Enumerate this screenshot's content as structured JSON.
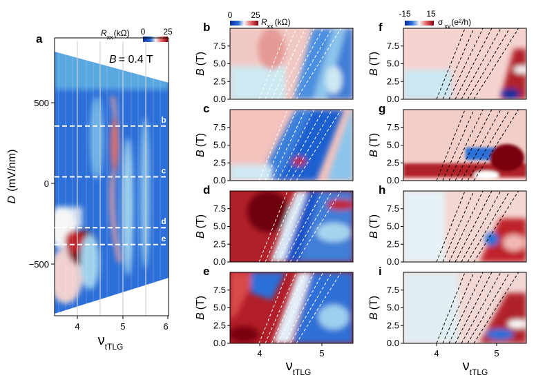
{
  "chart_data": [
    {
      "panel": "a",
      "type": "heatmap",
      "xlabel": "ν",
      "xlabel_sub": "tTLG",
      "ylabel_sym": "D",
      "ylabel_unit": "(mV/nm)",
      "xlim": [
        3.5,
        6.0
      ],
      "ylim": [
        -820,
        820
      ],
      "xticks": [
        "4",
        "5",
        "6"
      ],
      "yticks": [
        "500",
        "0",
        "−500"
      ],
      "annotation": "= 0.4 T",
      "annotation_sym": "B",
      "colorbar": {
        "label_sym": "R",
        "label_sub": "xx",
        "label_unit": "(kΩ)",
        "min": "0",
        "max": "25"
      },
      "cuts": [
        {
          "label": "b",
          "D": 300
        },
        {
          "label": "c",
          "D": 0
        },
        {
          "label": "d",
          "D": -300
        },
        {
          "label": "e",
          "D": -400
        }
      ]
    },
    {
      "panel": "b",
      "quantity": "Rxx",
      "ylabel": "B (T)",
      "yticks": [
        "0.0",
        "2.5",
        "5.0",
        "7.5"
      ],
      "ylim": [
        0,
        10
      ]
    },
    {
      "panel": "c",
      "quantity": "Rxx",
      "ylabel": "B (T)",
      "yticks": [
        "0.0",
        "2.5",
        "5.0",
        "7.5"
      ],
      "ylim": [
        0,
        10
      ]
    },
    {
      "panel": "d",
      "quantity": "Rxx",
      "ylabel": "B (T)",
      "yticks": [
        "0.0",
        "2.5",
        "5.0",
        "7.5"
      ],
      "ylim": [
        0,
        10
      ]
    },
    {
      "panel": "e",
      "quantity": "Rxx",
      "ylabel": "B (T)",
      "yticks": [
        "0.0",
        "2.5",
        "5.0",
        "7.5"
      ],
      "ylim": [
        0,
        10
      ],
      "xticks": [
        "4",
        "5"
      ],
      "xlabel": "ν",
      "xlabel_sub": "tTLG",
      "xlim": [
        3.4,
        5.6
      ]
    },
    {
      "panel": "f",
      "quantity": "σxy",
      "ylabel": "B (T)",
      "yticks": [
        "0.0",
        "2.5",
        "5.0",
        "7.5"
      ],
      "ylim": [
        0,
        10
      ]
    },
    {
      "panel": "g",
      "quantity": "σxy",
      "ylabel": "B (T)",
      "yticks": [
        "0.0",
        "2.5",
        "5.0",
        "7.5"
      ],
      "ylim": [
        0,
        10
      ]
    },
    {
      "panel": "h",
      "quantity": "σxy",
      "ylabel": "B (T)",
      "yticks": [
        "0.0",
        "2.5",
        "5.0",
        "7.5"
      ],
      "ylim": [
        0,
        10
      ]
    },
    {
      "panel": "i",
      "quantity": "σxy",
      "ylabel": "B (T)",
      "yticks": [
        "0.0",
        "2.5",
        "5.0",
        "7.5"
      ],
      "ylim": [
        0,
        10
      ],
      "xticks": [
        "4",
        "5"
      ],
      "xlabel": "ν",
      "xlabel_sub": "tTLG",
      "xlim": [
        3.4,
        5.6
      ]
    }
  ],
  "colorbars": {
    "rxx_top": {
      "min": "0",
      "max": "25",
      "label_sym": "R",
      "label_sub": "xx",
      "label_unit": "(kΩ)"
    },
    "sxy_top": {
      "min": "-15",
      "max": "15",
      "label": "σ",
      "label_sub": "xy",
      "label_unit": "(e²/h)"
    }
  },
  "colors": {
    "red": "#c0232b",
    "darkred": "#7a0010",
    "pink": "#f3b7b2",
    "white": "#f6f6f6",
    "lightblue": "#bfe3ef",
    "blue": "#2c6fd8",
    "darkblue": "#0a2a9a"
  }
}
